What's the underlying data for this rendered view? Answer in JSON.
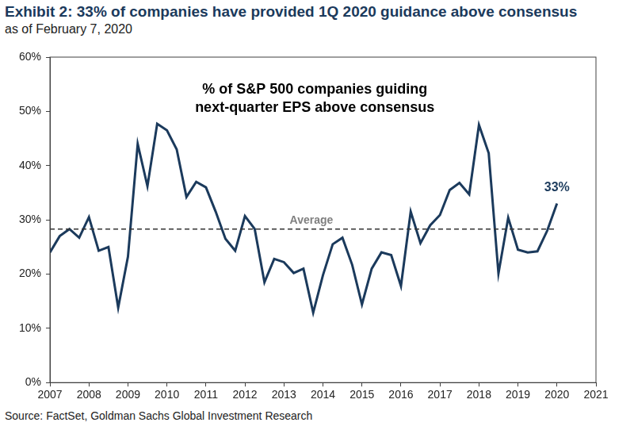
{
  "chart_data": {
    "type": "line",
    "title": "Exhibit 2: 33% of companies have provided 1Q 2020 guidance above consensus",
    "subtitle": "as of February 7, 2020",
    "inner_title": [
      "% of S&P 500 companies guiding",
      "next-quarter EPS above consensus"
    ],
    "source": "Source: FactSet, Goldman Sachs Global Investment Research",
    "x": [
      2007,
      2007.25,
      2007.5,
      2007.75,
      2008,
      2008.25,
      2008.5,
      2008.75,
      2009,
      2009.25,
      2009.5,
      2009.75,
      2010,
      2010.25,
      2010.5,
      2010.75,
      2011,
      2011.25,
      2011.5,
      2011.75,
      2012,
      2012.25,
      2012.5,
      2012.75,
      2013,
      2013.25,
      2013.5,
      2013.75,
      2014,
      2014.25,
      2014.5,
      2014.75,
      2015,
      2015.25,
      2015.5,
      2015.75,
      2016,
      2016.25,
      2016.5,
      2016.75,
      2017,
      2017.25,
      2017.5,
      2017.75,
      2018,
      2018.25,
      2018.5,
      2018.75,
      2019,
      2019.25,
      2019.5,
      2019.75,
      2020
    ],
    "values": [
      24,
      27,
      28.3,
      26.7,
      30.5,
      24.3,
      25,
      13.8,
      23.2,
      44,
      36.2,
      47.7,
      46.5,
      43,
      34.2,
      37,
      36,
      31.5,
      26.5,
      24.3,
      30.7,
      28.3,
      18.5,
      22.8,
      22.2,
      20.2,
      21,
      12.9,
      19.8,
      25.5,
      26.7,
      21.7,
      14.4,
      21,
      24,
      23.5,
      17.8,
      31.5,
      25.7,
      29,
      30.9,
      35.5,
      36.8,
      34.7,
      47.5,
      42.3,
      20.1,
      30.4,
      24.5,
      24,
      24.2,
      28,
      33
    ],
    "color": "#1b3a5c",
    "line_style": "solid",
    "average": {
      "label": "Average",
      "value": 28.3,
      "color": "#333333",
      "line_style": "dashed"
    },
    "annotations": [
      {
        "text": "33%",
        "x": 2020,
        "y": 33
      }
    ],
    "xlim": [
      2007,
      2021
    ],
    "xticks": [
      2007,
      2008,
      2009,
      2010,
      2011,
      2012,
      2013,
      2014,
      2015,
      2016,
      2017,
      2018,
      2019,
      2020,
      2021
    ],
    "ylim": [
      0,
      60
    ],
    "yticks": [
      {
        "value": 0,
        "label": "0%"
      },
      {
        "value": 10,
        "label": "10%"
      },
      {
        "value": 20,
        "label": "20%"
      },
      {
        "value": 30,
        "label": "30%"
      },
      {
        "value": 40,
        "label": "40%"
      },
      {
        "value": 50,
        "label": "50%"
      },
      {
        "value": 60,
        "label": "60%"
      }
    ],
    "grid": false
  }
}
